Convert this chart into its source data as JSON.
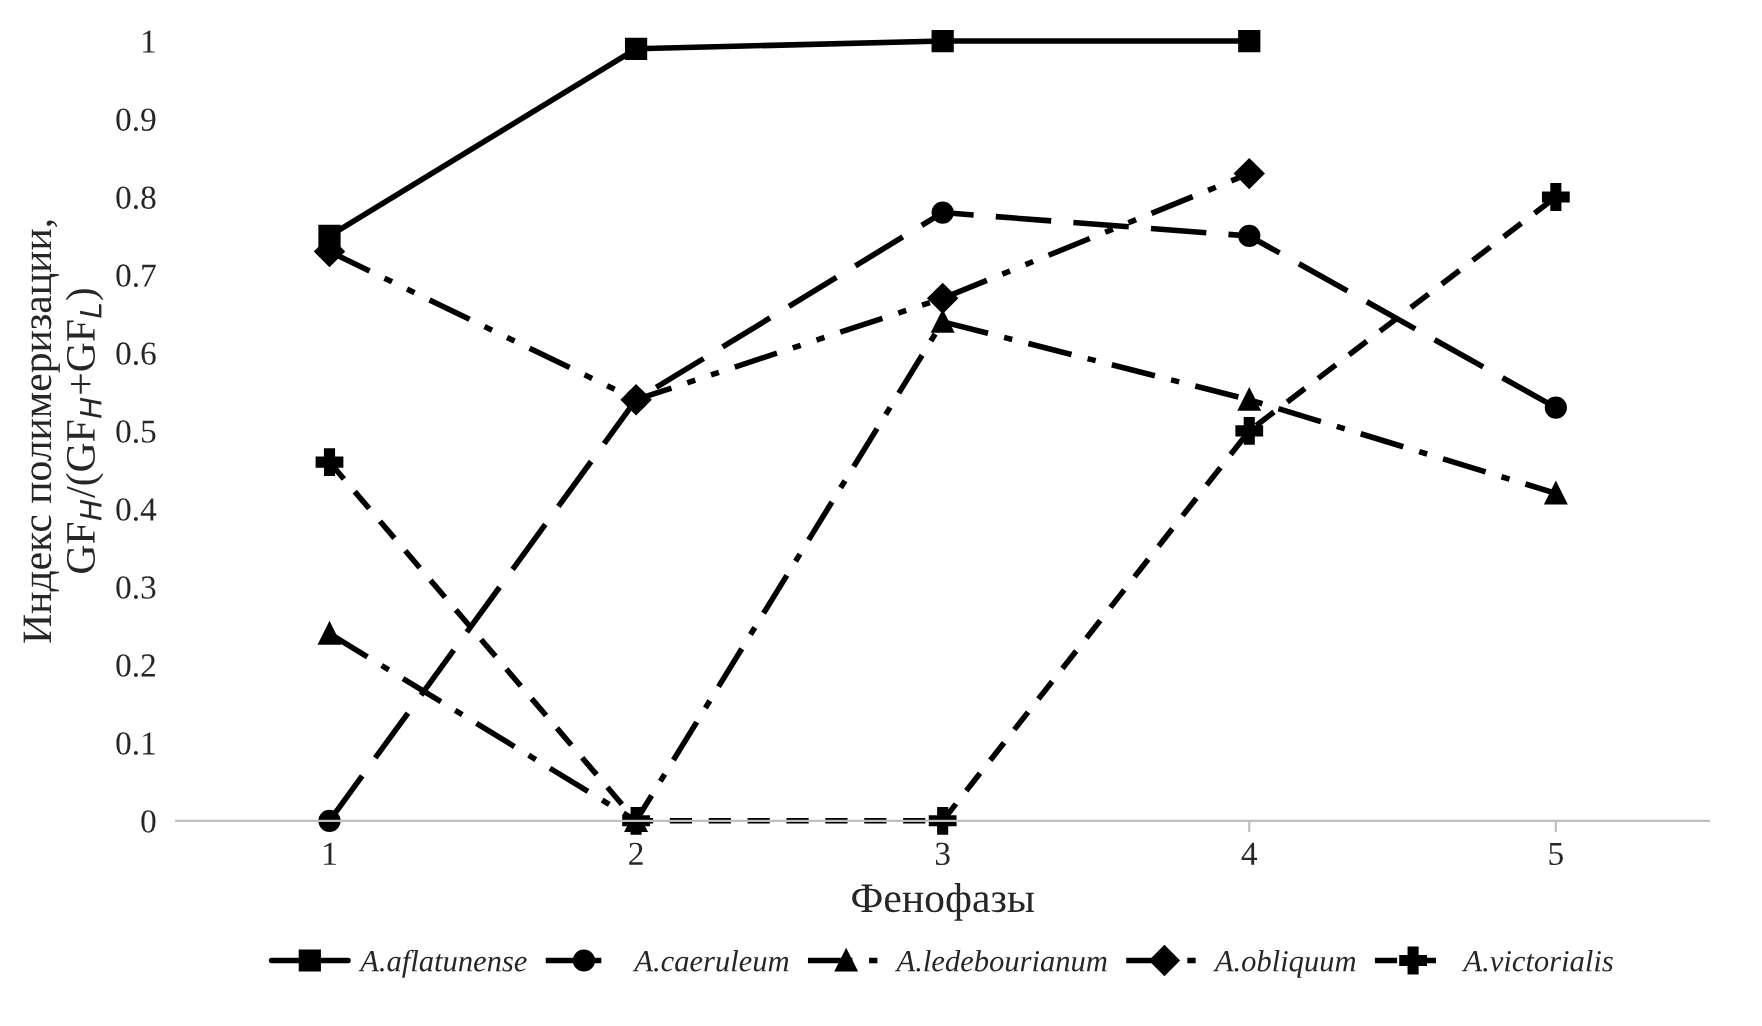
{
  "chart_data": {
    "type": "line",
    "xlabel": "Фенофазы",
    "ylabel": "Индекс полимеризации,\nGF$_{H}$/(GF$_{H}$+GF$_{L}$)",
    "categories": [
      "1",
      "2",
      "3",
      "4",
      "5"
    ],
    "ylim": [
      0,
      1
    ],
    "yticks": [
      0,
      0.1,
      0.2,
      0.3,
      0.4,
      0.5,
      0.6,
      0.7,
      0.8,
      0.9,
      1
    ],
    "grid": false,
    "legend": "bottom",
    "series": [
      {
        "name": "A.aflatunense",
        "color": "#000000",
        "marker": "square",
        "line_style": "solid",
        "values": [
          0.75,
          0.99,
          1,
          1,
          null
        ]
      },
      {
        "name": "A.caeruleum",
        "color": "#000000",
        "marker": "circle",
        "line_style": "longdash",
        "values": [
          0,
          0.54,
          0.78,
          0.75,
          0.53
        ]
      },
      {
        "name": "A.ledebourianum",
        "color": "#000000",
        "marker": "triangle",
        "line_style": "dashdot",
        "values": [
          0.24,
          0,
          0.64,
          0.54,
          0.42
        ]
      },
      {
        "name": "A.obliquum",
        "color": "#000000",
        "marker": "diamond",
        "line_style": "dashdotdot",
        "values": [
          0.73,
          0.54,
          0.67,
          0.83,
          null
        ]
      },
      {
        "name": "A.victorialis",
        "color": "#000000",
        "marker": "cross",
        "line_style": "dashed",
        "values": [
          0.46,
          0,
          0,
          0.5,
          0.8
        ]
      }
    ]
  }
}
